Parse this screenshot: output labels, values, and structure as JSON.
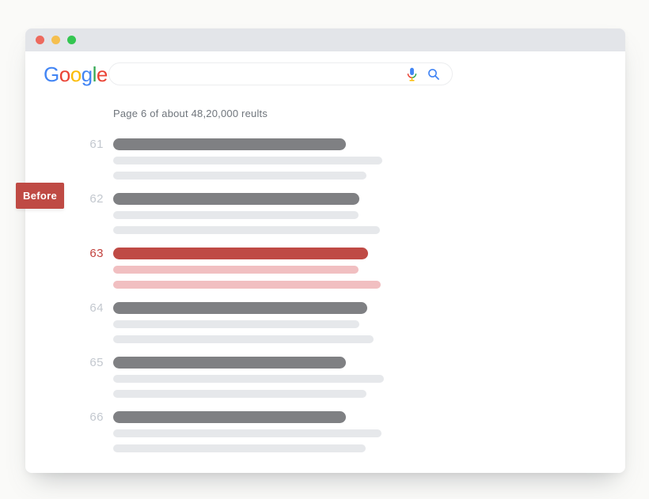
{
  "window": {
    "controls": [
      {
        "name": "close",
        "color": "#ED6A5E"
      },
      {
        "name": "minimize",
        "color": "#F5BF4F"
      },
      {
        "name": "maximize",
        "color": "#34C651"
      }
    ]
  },
  "logo": {
    "name": "Google",
    "letters": [
      {
        "char": "G",
        "color": "#4285F4"
      },
      {
        "char": "o",
        "color": "#EA4335"
      },
      {
        "char": "o",
        "color": "#FBBC05"
      },
      {
        "char": "g",
        "color": "#4285F4"
      },
      {
        "char": "l",
        "color": "#34A853"
      },
      {
        "char": "e",
        "color": "#EA4335"
      }
    ]
  },
  "search": {
    "value": ""
  },
  "results_header": "Page 6 of about 48,20,000 reults",
  "annotation": {
    "label": "Before"
  },
  "results": [
    {
      "rank": "61",
      "highlighted": false,
      "title_width": 294,
      "line1_width": 340,
      "line2_width": 320
    },
    {
      "rank": "62",
      "highlighted": false,
      "title_width": 311,
      "line1_width": 310,
      "line2_width": 337
    },
    {
      "rank": "63",
      "highlighted": true,
      "title_width": 322,
      "line1_width": 310,
      "line2_width": 338
    },
    {
      "rank": "64",
      "highlighted": false,
      "title_width": 321,
      "line1_width": 311,
      "line2_width": 329
    },
    {
      "rank": "65",
      "highlighted": false,
      "title_width": 294,
      "line1_width": 342,
      "line2_width": 320
    },
    {
      "rank": "66",
      "highlighted": false,
      "title_width": 294,
      "line1_width": 339,
      "line2_width": 319
    }
  ],
  "colors": {
    "page-bg": "#FAFAF8",
    "titlebar": "#E3E5E9",
    "bar-dark": "#7F8083",
    "bar-light": "#E6E8EB",
    "bar-red": "#BF4A45",
    "bar-pink": "#F1BFC1",
    "rank-gray": "#C3C8CF",
    "rank-red": "#C2423E",
    "label-red": "#BF4A44",
    "header-text": "#6F757C",
    "icon-blue": "#4285F4"
  }
}
